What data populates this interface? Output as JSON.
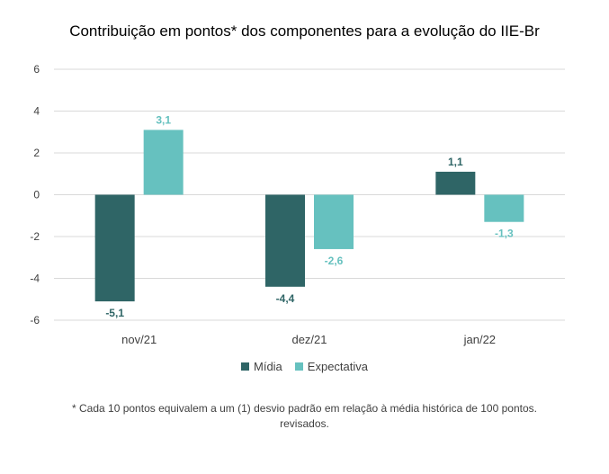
{
  "colors": {
    "midia": "#2f6566",
    "expectativa": "#66c1bf",
    "grid": "#d9d9d9",
    "axis_text": "#404040"
  },
  "footnote": {
    "line1": "* Cada 10 pontos equivalem a um (1) desvio padrão em relação à média histórica de 100 pontos.",
    "line2": "revisados."
  },
  "chart_data": {
    "type": "bar",
    "title": "Contribuição em pontos* dos componentes para a evolução do IIE-Br",
    "categories": [
      "nov/21",
      "dez/21",
      "jan/22"
    ],
    "series": [
      {
        "name": "Mídia",
        "values": [
          -5.1,
          -4.4,
          1.1
        ],
        "labels": [
          "-5,1",
          "-4,4",
          "1,1"
        ]
      },
      {
        "name": "Expectativa",
        "values": [
          3.1,
          -2.6,
          -1.3
        ],
        "labels": [
          "3,1",
          "-2,6",
          "-1,3"
        ]
      }
    ],
    "ylim": [
      -6,
      6
    ],
    "yticks": [
      6,
      4,
      2,
      0,
      -2,
      -4,
      -6
    ],
    "grid": true,
    "legend_position": "bottom"
  }
}
